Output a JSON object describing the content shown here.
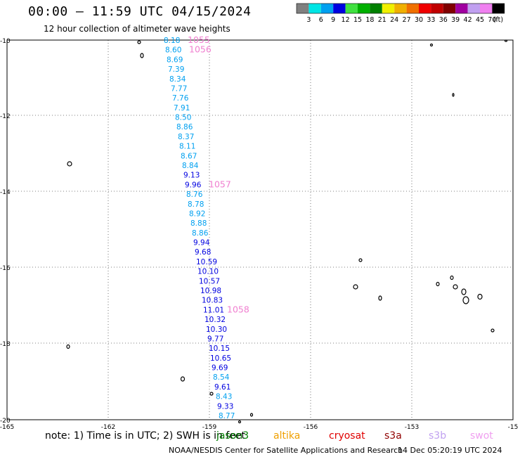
{
  "title": "00:00 – 11:59 UTC 04/15/2024",
  "subtitle": "12 hour collection of altimeter wave heights",
  "legend": {
    "labels": [
      "3",
      "6",
      "9",
      "12",
      "15",
      "18",
      "21",
      "24",
      "27",
      "30",
      "33",
      "36",
      "39",
      "42",
      "45",
      "70"
    ],
    "unit": "(ft)",
    "colors": [
      "#808080",
      "#00e5e5",
      "#00a0f0",
      "#0000e0",
      "#40e040",
      "#00b000",
      "#008000",
      "#f0f000",
      "#f0b000",
      "#f07000",
      "#f00000",
      "#c00000",
      "#800000",
      "#a000a0",
      "#c0a0f0",
      "#f080f0",
      "#000000"
    ]
  },
  "axes": {
    "y_labels": [
      "-10",
      "-12",
      "-14",
      "-16",
      "-18",
      "-20"
    ],
    "x_labels": [
      "-165",
      "-162",
      "-159",
      "-156",
      "-153",
      "-15"
    ]
  },
  "track": {
    "readings": [
      {
        "v": "8.18",
        "c": "#00a0f0"
      },
      {
        "v": "8.60",
        "c": "#00a0f0"
      },
      {
        "v": "8.69",
        "c": "#00a0f0"
      },
      {
        "v": "7.39",
        "c": "#00a0f0"
      },
      {
        "v": "8.34",
        "c": "#00a0f0"
      },
      {
        "v": "7.77",
        "c": "#00a0f0"
      },
      {
        "v": "7.76",
        "c": "#00a0f0"
      },
      {
        "v": "7.91",
        "c": "#00a0f0"
      },
      {
        "v": "8.50",
        "c": "#00a0f0"
      },
      {
        "v": "8.86",
        "c": "#00a0f0"
      },
      {
        "v": "8.37",
        "c": "#00a0f0"
      },
      {
        "v": "8.11",
        "c": "#00a0f0"
      },
      {
        "v": "8.67",
        "c": "#00a0f0"
      },
      {
        "v": "8.84",
        "c": "#00a0f0"
      },
      {
        "v": "9.13",
        "c": "#0000e0"
      },
      {
        "v": "9.96",
        "c": "#0000e0"
      },
      {
        "v": "8.76",
        "c": "#00a0f0"
      },
      {
        "v": "8.78",
        "c": "#00a0f0"
      },
      {
        "v": "8.92",
        "c": "#00a0f0"
      },
      {
        "v": "8.88",
        "c": "#00a0f0"
      },
      {
        "v": "8.86",
        "c": "#00a0f0"
      },
      {
        "v": "9.94",
        "c": "#0000e0"
      },
      {
        "v": "9.68",
        "c": "#0000e0"
      },
      {
        "v": "10.59",
        "c": "#0000e0"
      },
      {
        "v": "10.10",
        "c": "#0000e0"
      },
      {
        "v": "10.57",
        "c": "#0000e0"
      },
      {
        "v": "10.98",
        "c": "#0000e0"
      },
      {
        "v": "10.83",
        "c": "#0000e0"
      },
      {
        "v": "11.01",
        "c": "#0000e0"
      },
      {
        "v": "10.32",
        "c": "#0000e0"
      },
      {
        "v": "10.30",
        "c": "#0000e0"
      },
      {
        "v": "9.77",
        "c": "#0000e0"
      },
      {
        "v": "10.15",
        "c": "#0000e0"
      },
      {
        "v": "10.65",
        "c": "#0000e0"
      },
      {
        "v": "9.69",
        "c": "#0000e0"
      },
      {
        "v": "8.54",
        "c": "#00a0f0"
      },
      {
        "v": "9.61",
        "c": "#0000e0"
      },
      {
        "v": "8.43",
        "c": "#00a0f0"
      },
      {
        "v": "9.33",
        "c": "#0000e0"
      },
      {
        "v": "8.77",
        "c": "#00a0f0"
      }
    ],
    "time_marks": [
      "1055",
      "1056",
      "1057",
      "1058"
    ],
    "time_color": "#f080d0"
  },
  "footer": {
    "note": "note:  1) Time is in UTC;  2) SWH is in feet",
    "satellites": [
      {
        "name": "jason3",
        "color": "#008000"
      },
      {
        "name": "altika",
        "color": "#f0a000"
      },
      {
        "name": "cryosat",
        "color": "#e00000"
      },
      {
        "name": "s3a",
        "color": "#900000"
      },
      {
        "name": "s3b",
        "color": "#c0a0f0"
      },
      {
        "name": "swot",
        "color": "#f0a0f0"
      }
    ],
    "credit": "NOAA/NESDIS Center for Satellite Applications and Research",
    "generated": "14 Dec 05:20:19 UTC 2024"
  }
}
